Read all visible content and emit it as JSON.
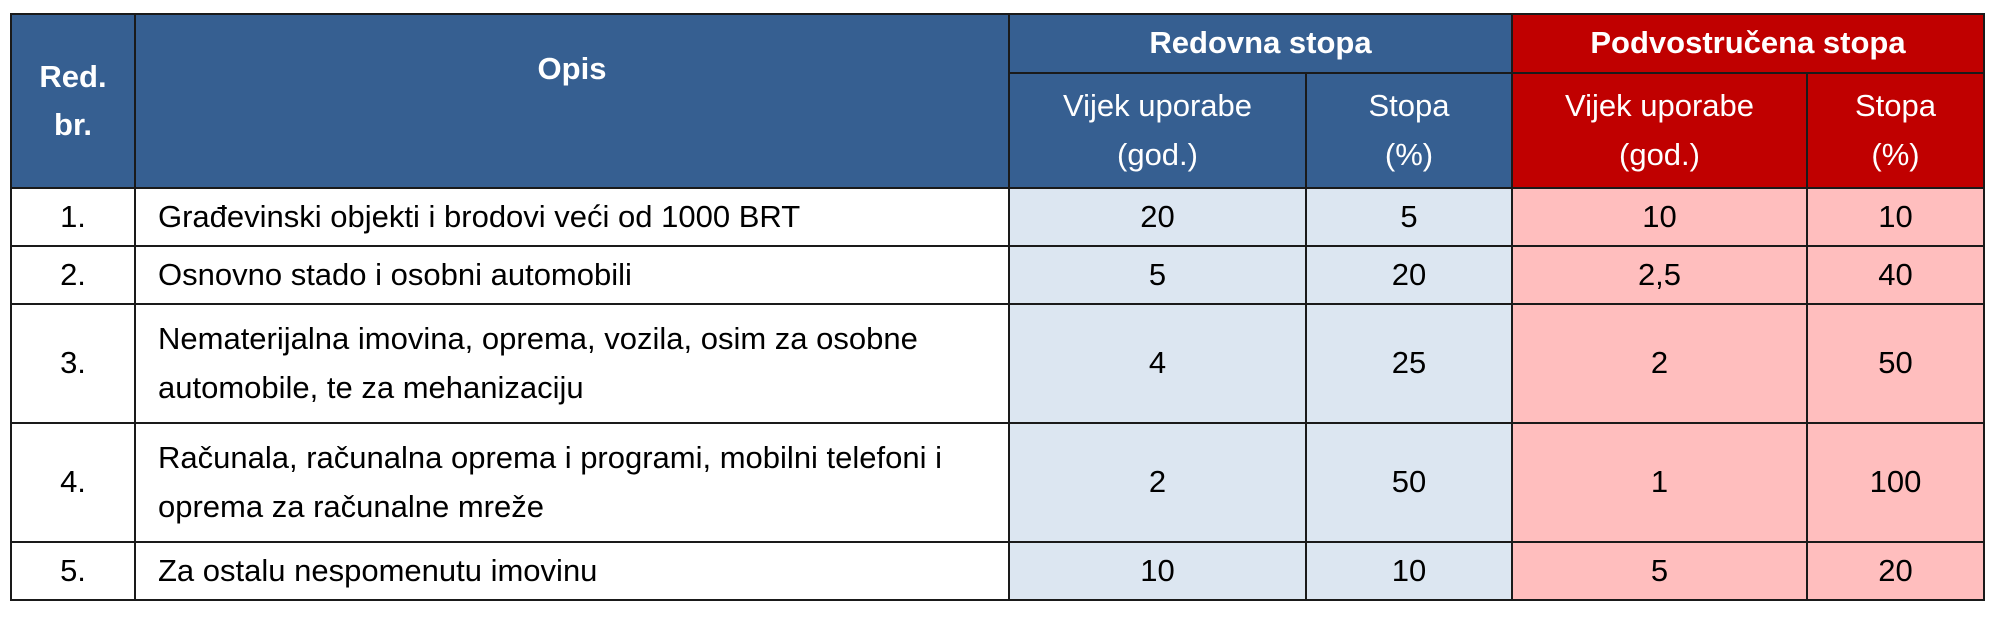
{
  "header": {
    "rednibroj": "Red. br.",
    "opis": "Opis",
    "redovna": "Redovna stopa",
    "podvostrucena": "Podvostručena stopa",
    "vijek": "Vijek uporabe (god.)",
    "stopa": "Stopa (%)"
  },
  "colors": {
    "blue_header": "#365f91",
    "red_header": "#c00000",
    "light_blue": "#dce6f1",
    "light_red": "#ffbebe"
  },
  "rows": [
    {
      "nr": "1.",
      "opis": "Građevinski objekti i brodovi veći od 1000 BRT",
      "r_vijek": "20",
      "r_stopa": "5",
      "p_vijek": "10",
      "p_stopa": "10"
    },
    {
      "nr": "2.",
      "opis": "Osnovno stado i osobni automobili",
      "r_vijek": "5",
      "r_stopa": "20",
      "p_vijek": "2,5",
      "p_stopa": "40"
    },
    {
      "nr": "3.",
      "opis": "Nematerijalna imovina, oprema, vozila, osim za osobne automobile, te za mehanizaciju",
      "r_vijek": "4",
      "r_stopa": "25",
      "p_vijek": "2",
      "p_stopa": "50"
    },
    {
      "nr": "4.",
      "opis": "Računala, računalna oprema i programi, mobilni telefoni i oprema za računalne mreže",
      "r_vijek": "2",
      "r_stopa": "50",
      "p_vijek": "1",
      "p_stopa": "100"
    },
    {
      "nr": "5.",
      "opis": "Za ostalu nespomenutu imovinu",
      "r_vijek": "10",
      "r_stopa": "10",
      "p_vijek": "5",
      "p_stopa": "20"
    }
  ]
}
